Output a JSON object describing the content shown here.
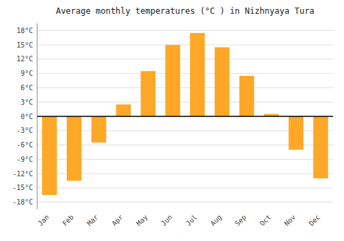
{
  "chart_data": {
    "type": "bar",
    "title": "Average monthly temperatures (°C ) in Nizhnyaya Tura",
    "categories": [
      "Jan",
      "Feb",
      "Mar",
      "Apr",
      "May",
      "Jun",
      "Jul",
      "Aug",
      "Sep",
      "Oct",
      "Nov",
      "Dec"
    ],
    "values": [
      -16.5,
      -13.5,
      -5.5,
      2.5,
      9.5,
      15.0,
      17.5,
      14.5,
      8.5,
      0.5,
      -7.0,
      -13.0
    ],
    "color": "#FFA726",
    "ylim": [
      -19.5,
      19.5
    ],
    "yticks": [
      {
        "value": -18,
        "label": "-18°C"
      },
      {
        "value": -15,
        "label": "-15°C"
      },
      {
        "value": -12,
        "label": "-12°C"
      },
      {
        "value": -9,
        "label": "-9°C"
      },
      {
        "value": -6,
        "label": "-6°C"
      },
      {
        "value": -3,
        "label": "-3°C"
      },
      {
        "value": 0,
        "label": "0°C"
      },
      {
        "value": 3,
        "label": "3°C"
      },
      {
        "value": 6,
        "label": "6°C"
      },
      {
        "value": 9,
        "label": "9°C"
      },
      {
        "value": 12,
        "label": "12°C"
      },
      {
        "value": 15,
        "label": "15°C"
      },
      {
        "value": 18,
        "label": "18°C"
      }
    ],
    "grid": true
  }
}
